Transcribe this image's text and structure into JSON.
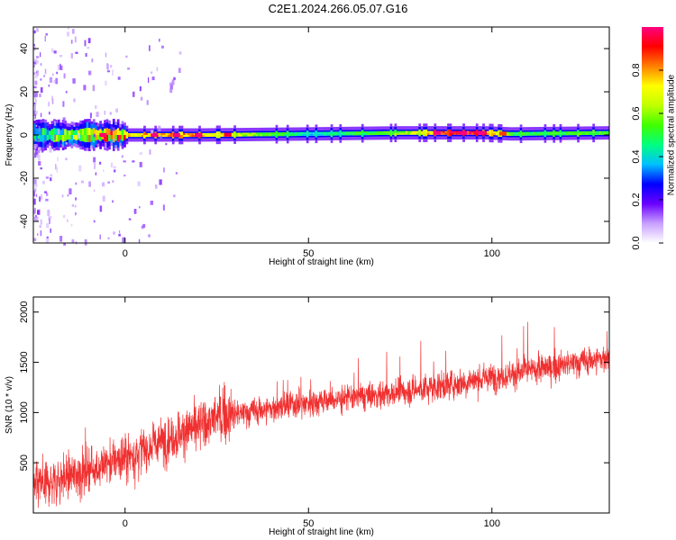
{
  "title": "C2E1.2024.266.05.07.G16",
  "chart_data": [
    {
      "type": "heatmap",
      "xlabel": "Height of straight line (km)",
      "ylabel": "Frequency (Hz)",
      "xlim": [
        -25,
        132
      ],
      "ylim": [
        -50,
        50
      ],
      "xticks": [
        0,
        50,
        100
      ],
      "yticks": [
        -40,
        -20,
        0,
        20,
        40
      ],
      "grid": false,
      "colorbar": {
        "label": "Normalized spectral amplitude",
        "range": [
          0,
          1
        ],
        "ticks": [
          0.0,
          0.2,
          0.4,
          0.6,
          0.8
        ],
        "tick_labels": [
          "0.0",
          "0.2",
          "0.4",
          "0.6",
          "0.8"
        ],
        "colormap": [
          "#ffffff",
          "#c8a0ff",
          "#6a00ff",
          "#0000ff",
          "#00bfff",
          "#00ff80",
          "#40ff00",
          "#c0ff00",
          "#ffff00",
          "#ff8000",
          "#ff0000",
          "#ff0080"
        ]
      },
      "ridge": {
        "description_points": [
          {
            "x": -25,
            "center_hz": 0,
            "amplitude": 0.4
          },
          {
            "x": -5,
            "center_hz": 0,
            "amplitude": 0.75
          },
          {
            "x": 20,
            "center_hz": 0,
            "amplitude": 0.8
          },
          {
            "x": 50,
            "center_hz": 0.5,
            "amplitude": 0.4
          },
          {
            "x": 75,
            "center_hz": 1,
            "amplitude": 0.6
          },
          {
            "x": 90,
            "center_hz": 1,
            "amplitude": 0.95
          },
          {
            "x": 98,
            "center_hz": 1,
            "amplitude": 0.9
          },
          {
            "x": 105,
            "center_hz": 0.5,
            "amplitude": 0.5
          },
          {
            "x": 132,
            "center_hz": 1,
            "amplitude": 0.55
          }
        ]
      }
    },
    {
      "type": "line",
      "xlabel": "Height of straight line (km)",
      "ylabel": "SNR (10 * v/v)",
      "xlim": [
        -25,
        132
      ],
      "ylim": [
        0,
        2150
      ],
      "xticks": [
        0,
        50,
        100
      ],
      "yticks": [
        500,
        1000,
        1500,
        2000
      ],
      "grid": false,
      "color": "#f03030",
      "trend_points": [
        {
          "x": -25,
          "y": 250
        },
        {
          "x": 0,
          "y": 550
        },
        {
          "x": 25,
          "y": 950
        },
        {
          "x": 50,
          "y": 1100
        },
        {
          "x": 75,
          "y": 1200
        },
        {
          "x": 100,
          "y": 1350
        },
        {
          "x": 132,
          "y": 1550
        }
      ]
    }
  ]
}
